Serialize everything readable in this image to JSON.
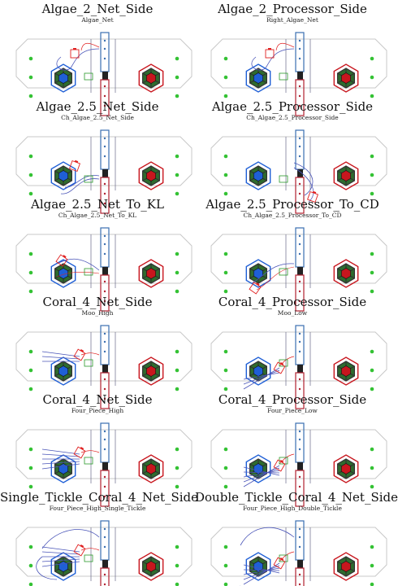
{
  "panels": [
    {
      "title": "Algae_2_Net_Side",
      "subtitle": "Algae_Net",
      "variant": "algae",
      "side": "left"
    },
    {
      "title": "Algae_2_Processor_Side",
      "subtitle": "Right_Algae_Net",
      "variant": "algae",
      "side": "right"
    },
    {
      "title": "Algae_2.5_Net_Side",
      "subtitle": "Ch_Algae_2.5_Net_Side",
      "variant": "algae25",
      "side": "left"
    },
    {
      "title": "Algae_2.5_Processor_Side",
      "subtitle": "Ch_Algae_2.5_Processor_Side",
      "variant": "algae25",
      "side": "right"
    },
    {
      "title": "Algae_2.5_Net_To_KL",
      "subtitle": "Ch_Algae_2.5_Net_To_KL",
      "variant": "algaeKL",
      "side": "left"
    },
    {
      "title": "Algae_2.5_Processor_To_CD",
      "subtitle": "Ch_Algae_2.5_Processor_To_CD",
      "variant": "algaeKL",
      "side": "right"
    },
    {
      "title": "Coral_4_Net_Side",
      "subtitle": "Moo_High",
      "variant": "coral",
      "side": "left"
    },
    {
      "title": "Coral_4_Processor_Side",
      "subtitle": "Moo_Low",
      "variant": "coral",
      "side": "right"
    },
    {
      "title": "Coral_4_Net_Side",
      "subtitle": "Four_Piece_High",
      "variant": "coral4",
      "side": "left"
    },
    {
      "title": "Coral_4_Processor_Side",
      "subtitle": "Four_Piece_Low",
      "variant": "coral4",
      "side": "right"
    },
    {
      "title": "Single_Tickle_Coral_4_Net_Side",
      "subtitle": "Four_Piece_High_Single_Tickle",
      "variant": "tickle",
      "side": "left"
    },
    {
      "title": "Double_Tickle_Coral_4_Net_Side",
      "subtitle": "Four_Piece_High_Double_Tickle",
      "variant": "tickle",
      "side": "right"
    }
  ],
  "colors": {
    "field_outline": "#c8c8c8",
    "blue_reef": "#1f5fd6",
    "red_reef": "#c8161e",
    "hex_green": "#2e6b2e",
    "hex_dark": "#333333",
    "coral_green": "#34c234",
    "barge_blue": "#3a6fb0",
    "barge_red": "#b02030",
    "path_blue": "#4a55b8",
    "robot_red": "#e02020",
    "robot_green": "#2a9a2a"
  }
}
